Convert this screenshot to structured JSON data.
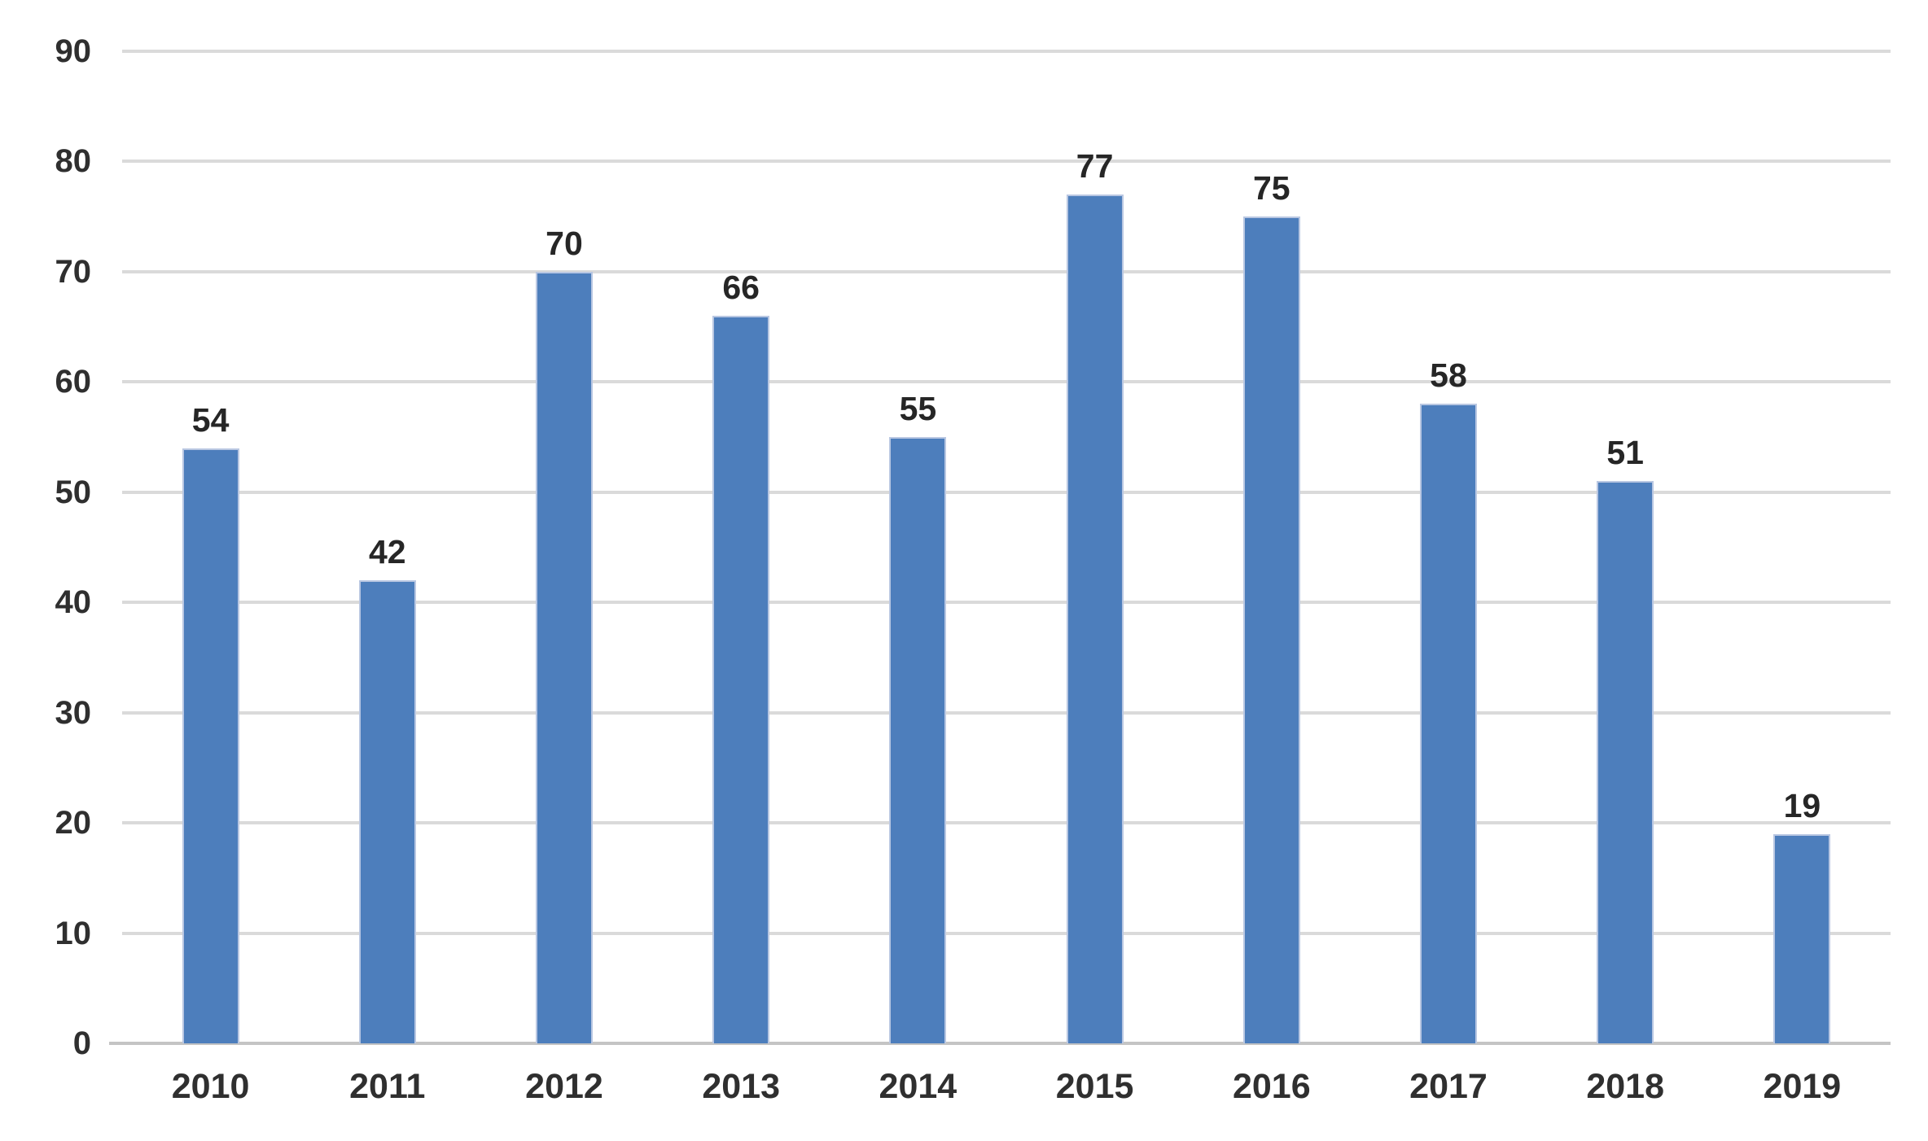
{
  "chart_data": {
    "type": "bar",
    "title": "",
    "categories": [
      "2010",
      "2011",
      "2012",
      "2013",
      "2014",
      "2015",
      "2016",
      "2017",
      "2018",
      "2019"
    ],
    "values": [
      54,
      42,
      70,
      66,
      55,
      77,
      75,
      58,
      51,
      19
    ],
    "data_labels_shown": true,
    "xlabel": "",
    "ylabel": "",
    "ylim": [
      0,
      90
    ],
    "y_ticks": [
      0,
      10,
      20,
      30,
      40,
      50,
      60,
      70,
      80,
      90
    ],
    "grid": "horizontal",
    "legend": "none",
    "colors": {
      "bar_fill": "#4d7ebc",
      "bar_edge": "#b9c7e2",
      "gridline": "#dadada",
      "axis_line": "#c4c4c4",
      "label_text": "#262626",
      "tick_text": "#2f2f2f",
      "background": "#ffffff"
    }
  }
}
